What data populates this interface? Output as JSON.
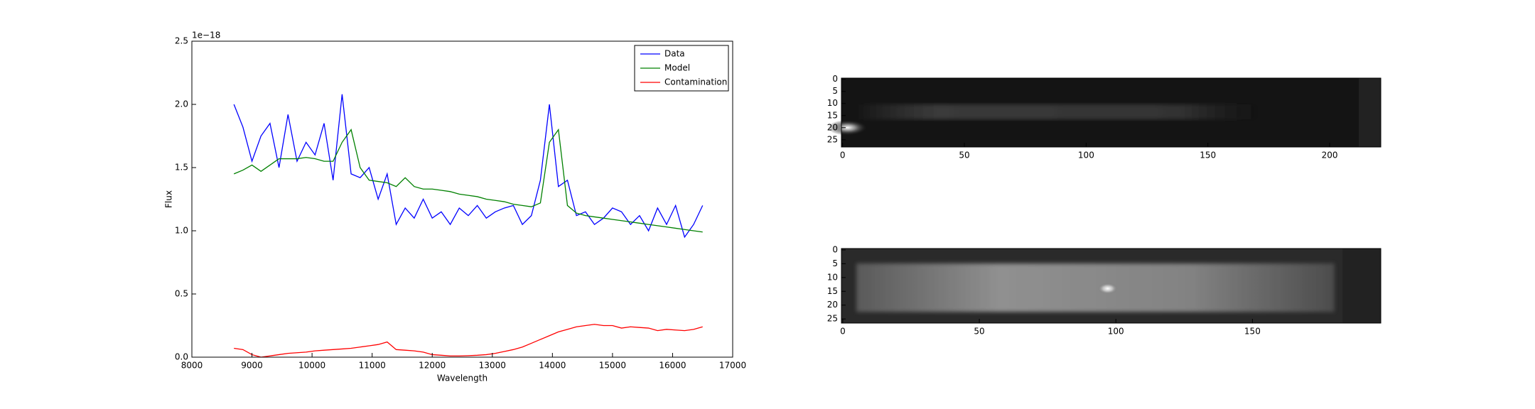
{
  "chart_data": [
    {
      "type": "line",
      "xlabel": "Wavelength",
      "ylabel": "Flux",
      "offset_text": "1e−18",
      "x": [
        8700,
        8850,
        9000,
        9150,
        9300,
        9450,
        9600,
        9750,
        9900,
        10050,
        10200,
        10350,
        10500,
        10650,
        10800,
        10950,
        11100,
        11250,
        11400,
        11550,
        11700,
        11850,
        12000,
        12150,
        12300,
        12450,
        12600,
        12750,
        12900,
        13050,
        13200,
        13350,
        13500,
        13650,
        13800,
        13950,
        14100,
        14250,
        14400,
        14550,
        14700,
        14850,
        15000,
        15150,
        15300,
        15450,
        15600,
        15750,
        15900,
        16050,
        16200,
        16350,
        16500
      ],
      "series": [
        {
          "name": "Data",
          "color": "#0000ff",
          "values": [
            2.0,
            1.82,
            1.55,
            1.75,
            1.85,
            1.5,
            1.92,
            1.55,
            1.7,
            1.6,
            1.85,
            1.4,
            2.08,
            1.45,
            1.42,
            1.5,
            1.25,
            1.45,
            1.05,
            1.18,
            1.1,
            1.25,
            1.1,
            1.15,
            1.05,
            1.18,
            1.12,
            1.2,
            1.1,
            1.15,
            1.18,
            1.2,
            1.05,
            1.12,
            1.4,
            2.0,
            1.35,
            1.4,
            1.12,
            1.15,
            1.05,
            1.1,
            1.18,
            1.15,
            1.05,
            1.12,
            1.0,
            1.18,
            1.05,
            1.2,
            0.95,
            1.05,
            1.2
          ]
        },
        {
          "name": "Model",
          "color": "#008000",
          "values": [
            1.45,
            1.48,
            1.52,
            1.47,
            1.52,
            1.57,
            1.57,
            1.57,
            1.58,
            1.57,
            1.55,
            1.55,
            1.7,
            1.8,
            1.5,
            1.4,
            1.39,
            1.38,
            1.35,
            1.42,
            1.35,
            1.33,
            1.33,
            1.32,
            1.31,
            1.29,
            1.28,
            1.27,
            1.25,
            1.24,
            1.23,
            1.21,
            1.2,
            1.19,
            1.22,
            1.7,
            1.8,
            1.2,
            1.14,
            1.12,
            1.11,
            1.1,
            1.09,
            1.08,
            1.07,
            1.06,
            1.05,
            1.04,
            1.03,
            1.02,
            1.01,
            1.0,
            0.99
          ]
        },
        {
          "name": "Contamination",
          "color": "#ff0000",
          "values": [
            0.07,
            0.06,
            0.02,
            0.0,
            0.01,
            0.02,
            0.03,
            0.035,
            0.04,
            0.05,
            0.055,
            0.06,
            0.065,
            0.07,
            0.08,
            0.09,
            0.1,
            0.12,
            0.06,
            0.055,
            0.05,
            0.04,
            0.02,
            0.015,
            0.01,
            0.01,
            0.012,
            0.015,
            0.02,
            0.03,
            0.045,
            0.06,
            0.08,
            0.11,
            0.14,
            0.17,
            0.2,
            0.22,
            0.24,
            0.25,
            0.26,
            0.25,
            0.25,
            0.23,
            0.24,
            0.235,
            0.23,
            0.21,
            0.22,
            0.215,
            0.21,
            0.22,
            0.24
          ]
        }
      ],
      "xlim": [
        8000,
        17000
      ],
      "xticks": [
        8000,
        9000,
        10000,
        11000,
        12000,
        13000,
        14000,
        15000,
        16000,
        17000
      ],
      "ylim": [
        0,
        2.5
      ],
      "yticks": [
        {
          "value": 0,
          "label": "0.0"
        },
        {
          "value": 0.5,
          "label": "0.5"
        },
        {
          "value": 1,
          "label": "1.0"
        },
        {
          "value": 1.5,
          "label": "1.5"
        },
        {
          "value": 2,
          "label": "2.0"
        },
        {
          "value": 2.5,
          "label": "2.5"
        }
      ],
      "legend": "upper right"
    },
    {
      "type": "image",
      "xlim": [
        -0.5,
        221
      ],
      "xticks": [
        0,
        50,
        100,
        150,
        200
      ],
      "ylim": [
        28,
        -0.5
      ],
      "yticks": [
        0,
        5,
        10,
        15,
        20,
        25
      ]
    },
    {
      "type": "image",
      "xlim": [
        -0.5,
        197
      ],
      "xticks": [
        0,
        50,
        100,
        150
      ],
      "ylim": [
        26.5,
        -0.5
      ],
      "yticks": [
        0,
        5,
        10,
        15,
        20,
        25
      ]
    }
  ]
}
